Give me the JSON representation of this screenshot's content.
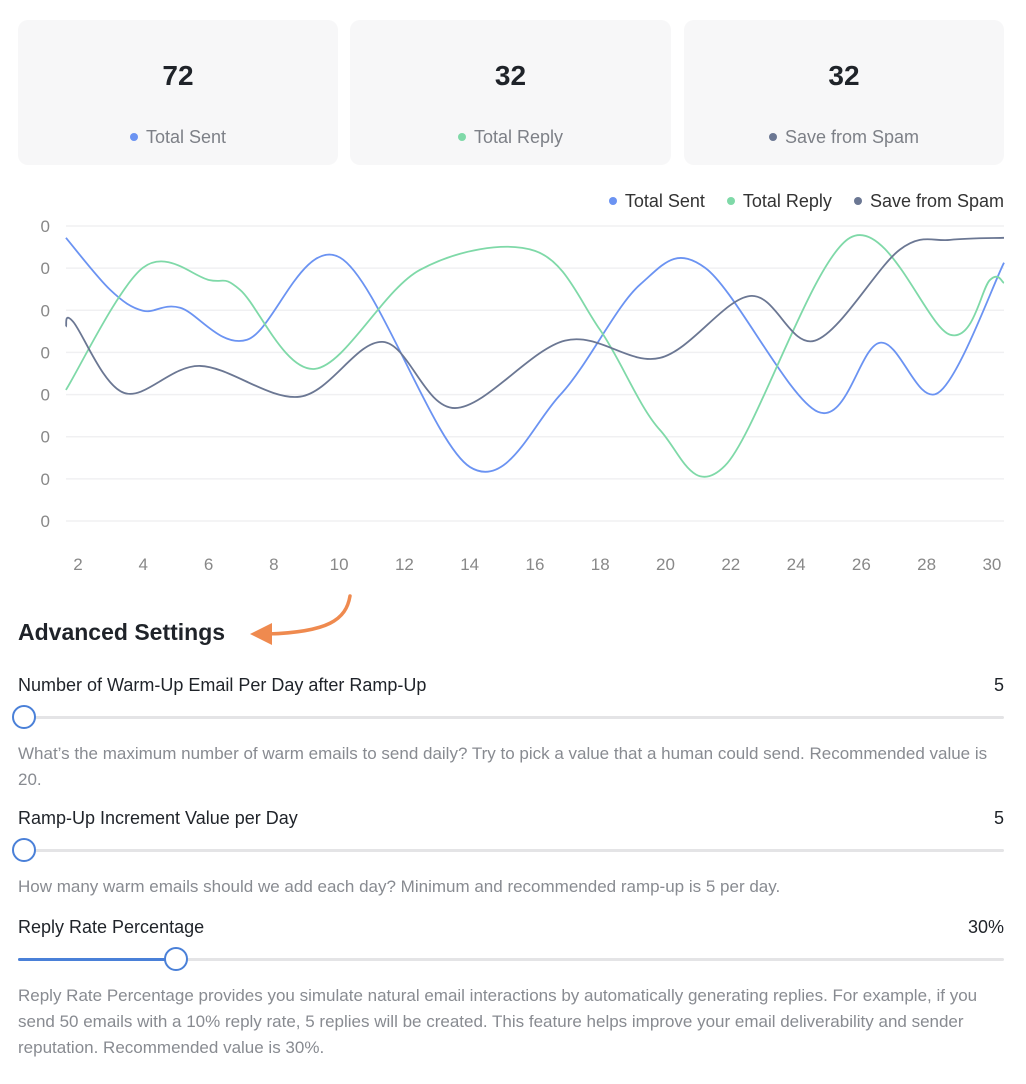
{
  "stats": [
    {
      "value": "72",
      "label": "Total Sent",
      "color": "#6b93f2"
    },
    {
      "value": "32",
      "label": "Total Reply",
      "color": "#7fd9a8"
    },
    {
      "value": "32",
      "label": "Save from Spam",
      "color": "#6b7793"
    }
  ],
  "chart_data": {
    "type": "line",
    "title": "",
    "xlabel": "",
    "ylabel": "",
    "x_ticks": [
      "2",
      "4",
      "6",
      "8",
      "10",
      "12",
      "14",
      "16",
      "18",
      "20",
      "22",
      "24",
      "26",
      "28",
      "30"
    ],
    "y_ticks": [
      "0",
      "0",
      "0",
      "0",
      "0",
      "0",
      "0",
      "0"
    ],
    "xlim": [
      1.6,
      30.4
    ],
    "ylim": [
      0,
      7
    ],
    "grid": true,
    "legend": "top-right",
    "series": [
      {
        "name": "Total Sent",
        "color": "#6b93f2",
        "points": [
          [
            1.63,
            6.72
          ],
          [
            2.98,
            5.49
          ],
          [
            3.99,
            4.99
          ],
          [
            5.13,
            5.06
          ],
          [
            7.18,
            4.3
          ],
          [
            10.03,
            6.25
          ],
          [
            14.01,
            1.28
          ],
          [
            16.77,
            2.99
          ],
          [
            19.22,
            5.61
          ],
          [
            21.21,
            6.01
          ],
          [
            24.67,
            2.59
          ],
          [
            26.57,
            4.23
          ],
          [
            28.35,
            3.04
          ],
          [
            30.37,
            6.13
          ]
        ]
      },
      {
        "name": "Total Reply",
        "color": "#7fd9a8",
        "points": [
          [
            1.63,
            3.11
          ],
          [
            3.99,
            6.01
          ],
          [
            6.01,
            5.72
          ],
          [
            6.96,
            5.49
          ],
          [
            9.26,
            3.61
          ],
          [
            12.48,
            5.96
          ],
          [
            16.0,
            6.41
          ],
          [
            17.99,
            4.54
          ],
          [
            19.83,
            2.16
          ],
          [
            21.82,
            1.31
          ],
          [
            25.65,
            6.72
          ],
          [
            28.72,
            4.42
          ],
          [
            29.94,
            5.72
          ],
          [
            30.37,
            5.65
          ]
        ]
      },
      {
        "name": "Save from Spam",
        "color": "#6b7793",
        "points": [
          [
            1.63,
            4.61
          ],
          [
            1.85,
            4.73
          ],
          [
            3.41,
            3.04
          ],
          [
            5.74,
            3.68
          ],
          [
            8.8,
            2.95
          ],
          [
            11.34,
            4.25
          ],
          [
            13.55,
            2.68
          ],
          [
            16.92,
            4.28
          ],
          [
            19.83,
            3.87
          ],
          [
            22.59,
            5.34
          ],
          [
            24.58,
            4.28
          ],
          [
            27.18,
            6.44
          ],
          [
            28.72,
            6.67
          ],
          [
            30.37,
            6.72
          ]
        ]
      }
    ]
  },
  "settings": {
    "title": "Advanced Settings",
    "arrow_color": "#ef8a4f",
    "items": [
      {
        "label": "Number of Warm-Up Email Per Day after Ramp-Up",
        "value": "5",
        "position": 0.006,
        "description": "What’s the maximum number of warm emails to send daily? Try to pick a value that a human could send. Recommended value is 20."
      },
      {
        "label": "Ramp-Up Increment Value per Day",
        "value": "5",
        "position": 0.006,
        "description": "How many warm emails should we add each day? Minimum and recommended ramp-up is 5 per day."
      },
      {
        "label": "Reply Rate Percentage",
        "value": "30%",
        "position": 0.16,
        "description": "Reply Rate Percentage provides you simulate natural email interactions by automatically generating replies. For example, if you send 50 emails with a 10% reply rate, 5 replies will be created. This feature helps improve your email deliverability and sender reputation. Recommended value is 30%."
      }
    ]
  }
}
